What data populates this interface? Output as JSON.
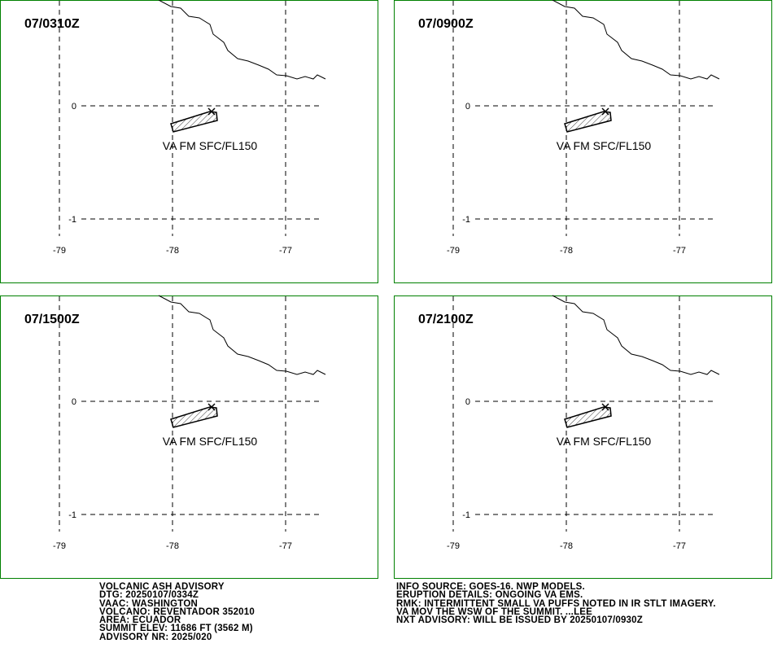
{
  "map": {
    "lon_labels": [
      -79,
      -78,
      -77
    ],
    "lat_labels": [
      0,
      -1
    ]
  },
  "panels": [
    {
      "time": "07/0310Z",
      "ash_label": "VA FM SFC/FL150"
    },
    {
      "time": "07/0900Z",
      "ash_label": "VA FM SFC/FL150"
    },
    {
      "time": "07/1500Z",
      "ash_label": "VA FM SFC/FL150"
    },
    {
      "time": "07/2100Z",
      "ash_label": "VA FM SFC/FL150"
    }
  ],
  "advisory_left": [
    "VOLCANIC ASH ADVISORY",
    "DTG: 20250107/0334Z",
    "VAAC: WASHINGTON",
    "VOLCANO: REVENTADOR 352010",
    "AREA: ECUADOR",
    "SUMMIT ELEV: 11686 FT (3562 M)",
    "ADVISORY NR: 2025/020"
  ],
  "advisory_right": [
    "INFO SOURCE: GOES-16. NWP MODELS.",
    "ERUPTION DETAILS: ONGOING VA EMS.",
    "RMK: INTERMITTENT SMALL VA PUFFS NOTED IN IR STLT IMAGERY.",
    "VA MOV THE WSW OF THE SUMMIT. ...LEE",
    "NXT ADVISORY: WILL BE ISSUED BY 20250107/0930Z"
  ]
}
